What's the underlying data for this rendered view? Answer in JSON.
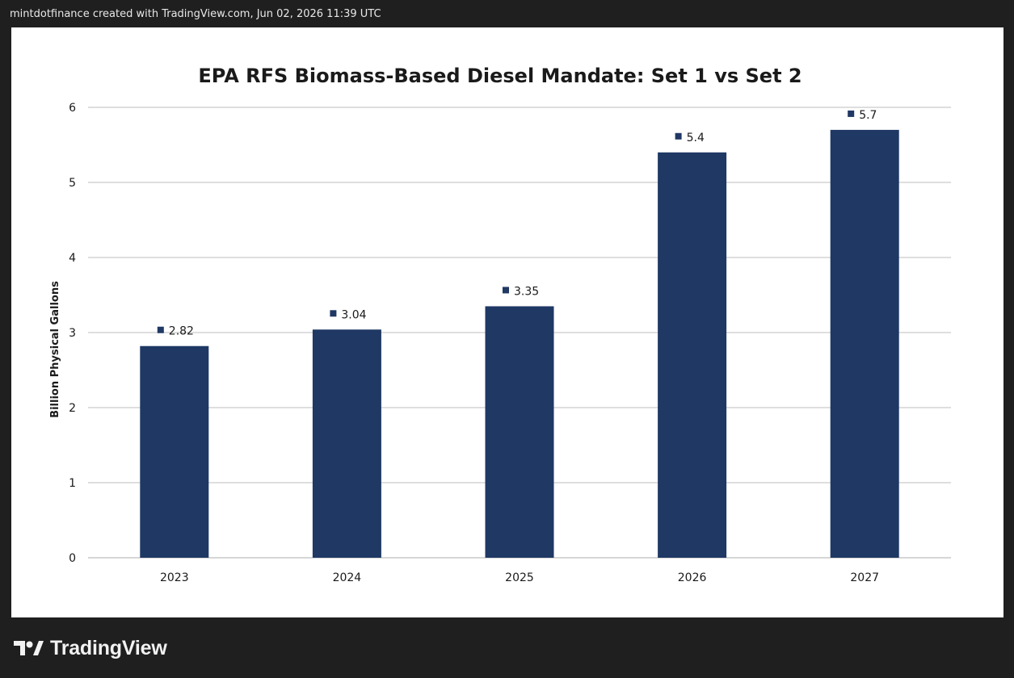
{
  "header": {
    "attribution": "mintdotfinance created with TradingView.com, Jun 02, 2026 11:39 UTC"
  },
  "brand": {
    "name": "TradingView",
    "logo_icon": "tradingview-logo-icon"
  },
  "colors": {
    "bar": "#1f3864",
    "grid": "#bdbdbd",
    "text": "#1a1a1a"
  },
  "chart_data": {
    "type": "bar",
    "title": "EPA RFS Biomass-Based Diesel Mandate: Set 1 vs Set 2",
    "xlabel": "",
    "ylabel": "Billion Physical Gallons",
    "categories": [
      "2023",
      "2024",
      "2025",
      "2026",
      "2027"
    ],
    "values": [
      2.82,
      3.04,
      3.35,
      5.4,
      5.7
    ],
    "data_labels": [
      "2.82",
      "3.04",
      "3.35",
      "5.4",
      "5.7"
    ],
    "ylim": [
      0,
      6
    ],
    "yticks": [
      "0",
      "1",
      "2",
      "3",
      "4",
      "5",
      "6"
    ],
    "grid": true,
    "legend": "none"
  }
}
